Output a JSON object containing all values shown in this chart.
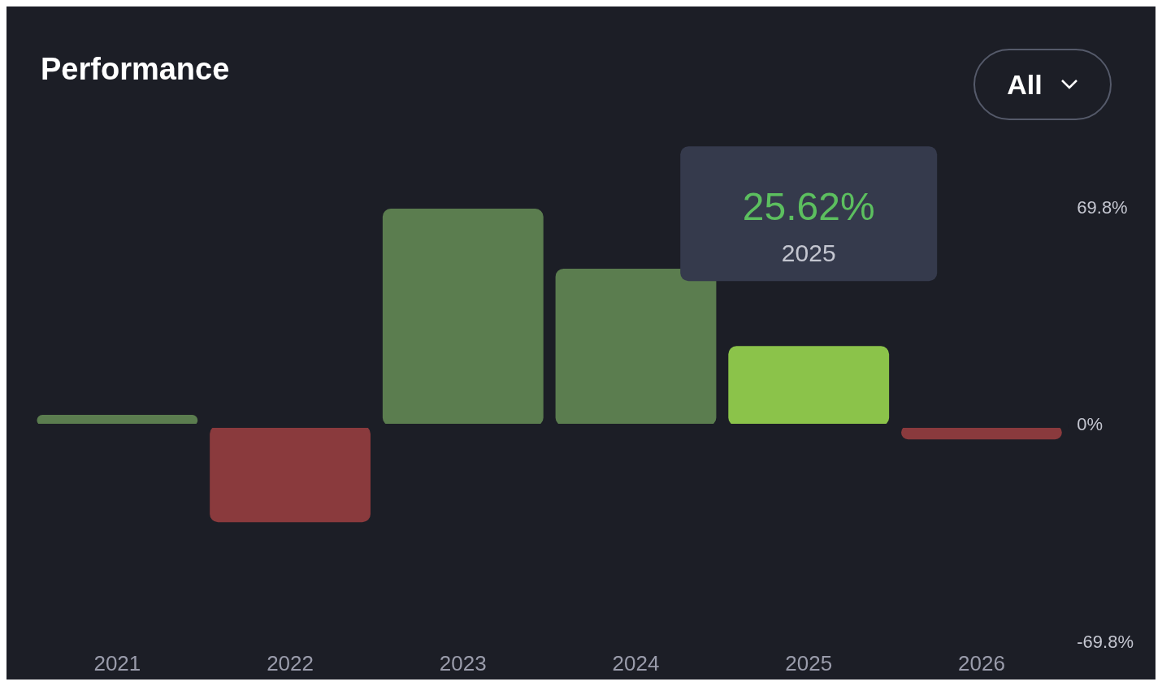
{
  "chart_data": {
    "type": "bar",
    "title": "Performance",
    "categories": [
      "2021",
      "2022",
      "2023",
      "2024",
      "2025",
      "2026"
    ],
    "values": [
      3.5,
      -31,
      69.8,
      50.5,
      25.62,
      -4.4
    ],
    "colors": [
      "#5b7d4f",
      "#8a3a3d",
      "#5b7d4f",
      "#5b7d4f",
      "#8bc34a",
      "#8a3a3d"
    ],
    "value_labels": [
      null,
      null,
      null,
      null,
      "25.62%",
      null
    ],
    "ylim": [
      -69.8,
      69.8
    ],
    "yticks": [
      {
        "value": 69.8,
        "label": "69.8%"
      },
      {
        "value": 0,
        "label": "0%"
      },
      {
        "value": -69.8,
        "label": "-69.8%"
      }
    ],
    "ref_lines": [
      {
        "axis": "y",
        "value": 0,
        "color": "#1c1e26"
      }
    ],
    "annotations": [
      "All",
      "2025"
    ],
    "grid": false,
    "legend": false
  }
}
